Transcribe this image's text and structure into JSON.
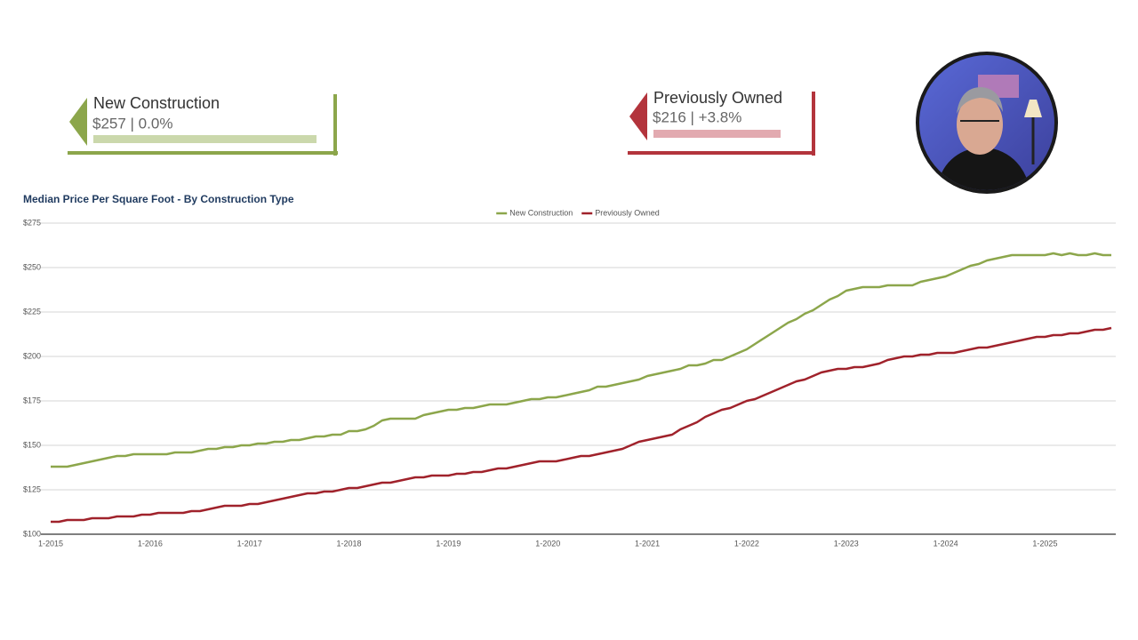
{
  "callouts": [
    {
      "title": "New Construction",
      "value": "$257 | 0.0%"
    },
    {
      "title": "Previously Owned",
      "value": "$216 | +3.8%"
    }
  ],
  "chart_data": {
    "type": "line",
    "title": "Median Price Per Square Foot - By Construction Type",
    "categories": [
      "1-2015",
      null,
      null,
      null,
      null,
      null,
      null,
      null,
      null,
      null,
      null,
      null,
      "1-2016",
      null,
      null,
      null,
      null,
      null,
      null,
      null,
      null,
      null,
      null,
      null,
      "1-2017",
      null,
      null,
      null,
      null,
      null,
      null,
      null,
      null,
      null,
      null,
      null,
      "1-2018",
      null,
      null,
      null,
      null,
      null,
      null,
      null,
      null,
      null,
      null,
      null,
      "1-2019",
      null,
      null,
      null,
      null,
      null,
      null,
      null,
      null,
      null,
      null,
      null,
      "1-2020",
      null,
      null,
      null,
      null,
      null,
      null,
      null,
      null,
      null,
      null,
      null,
      "1-2021",
      null,
      null,
      null,
      null,
      null,
      null,
      null,
      null,
      null,
      null,
      null,
      "1-2022",
      null,
      null,
      null,
      null,
      null,
      null,
      null,
      null,
      null,
      null,
      null,
      "1-2023",
      null,
      null,
      null,
      null,
      null,
      null,
      null,
      null,
      null,
      null,
      null,
      "1-2024",
      null,
      null,
      null,
      null,
      null,
      null,
      null,
      null,
      null,
      null,
      null,
      "1-2025",
      null,
      null,
      null,
      null,
      null,
      null,
      null,
      null
    ],
    "series": [
      {
        "name": "New Construction",
        "color": "#8ca64b",
        "values": [
          138,
          138,
          138,
          139,
          140,
          141,
          142,
          143,
          144,
          144,
          145,
          145,
          145,
          145,
          145,
          146,
          146,
          146,
          147,
          148,
          148,
          149,
          149,
          150,
          150,
          151,
          151,
          152,
          152,
          153,
          153,
          154,
          155,
          155,
          156,
          156,
          158,
          158,
          159,
          161,
          164,
          165,
          165,
          165,
          165,
          167,
          168,
          169,
          170,
          170,
          171,
          171,
          172,
          173,
          173,
          173,
          174,
          175,
          176,
          176,
          177,
          177,
          178,
          179,
          180,
          181,
          183,
          183,
          184,
          185,
          186,
          187,
          189,
          190,
          191,
          192,
          193,
          195,
          195,
          196,
          198,
          198,
          200,
          202,
          204,
          207,
          210,
          213,
          216,
          219,
          221,
          224,
          226,
          229,
          232,
          234,
          237,
          238,
          239,
          239,
          239,
          240,
          240,
          240,
          240,
          242,
          243,
          244,
          245,
          247,
          249,
          251,
          252,
          254,
          255,
          256,
          257,
          257,
          257,
          257,
          257,
          258,
          257,
          258,
          257,
          257,
          258,
          257,
          257
        ]
      },
      {
        "name": "Previously Owned",
        "color": "#a0222b",
        "values": [
          107,
          107,
          108,
          108,
          108,
          109,
          109,
          109,
          110,
          110,
          110,
          111,
          111,
          112,
          112,
          112,
          112,
          113,
          113,
          114,
          115,
          116,
          116,
          116,
          117,
          117,
          118,
          119,
          120,
          121,
          122,
          123,
          123,
          124,
          124,
          125,
          126,
          126,
          127,
          128,
          129,
          129,
          130,
          131,
          132,
          132,
          133,
          133,
          133,
          134,
          134,
          135,
          135,
          136,
          137,
          137,
          138,
          139,
          140,
          141,
          141,
          141,
          142,
          143,
          144,
          144,
          145,
          146,
          147,
          148,
          150,
          152,
          153,
          154,
          155,
          156,
          159,
          161,
          163,
          166,
          168,
          170,
          171,
          173,
          175,
          176,
          178,
          180,
          182,
          184,
          186,
          187,
          189,
          191,
          192,
          193,
          193,
          194,
          194,
          195,
          196,
          198,
          199,
          200,
          200,
          201,
          201,
          202,
          202,
          202,
          203,
          204,
          205,
          205,
          206,
          207,
          208,
          209,
          210,
          211,
          211,
          212,
          212,
          213,
          213,
          214,
          215,
          215,
          216
        ]
      }
    ],
    "ylim": [
      100,
      275
    ],
    "yticks": [
      {
        "value": 100,
        "label": "$100"
      },
      {
        "value": 125,
        "label": "$125"
      },
      {
        "value": 150,
        "label": "$150"
      },
      {
        "value": 175,
        "label": "$175"
      },
      {
        "value": 200,
        "label": "$200"
      },
      {
        "value": 225,
        "label": "$225"
      },
      {
        "value": 250,
        "label": "$250"
      },
      {
        "value": 275,
        "label": "$275"
      }
    ],
    "grid": true,
    "legend": "top"
  }
}
